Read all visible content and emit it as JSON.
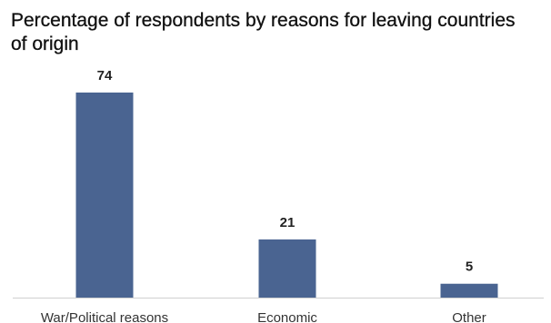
{
  "chart_data": {
    "type": "bar",
    "title": "Percentage of respondents by reasons for leaving countries of origin",
    "categories": [
      "War/Political reasons",
      "Economic",
      "Other"
    ],
    "values": [
      74,
      21,
      5
    ],
    "ylim": [
      0,
      80
    ],
    "grid": false,
    "legend": "none",
    "colors": {
      "bar": "#4a6491",
      "axis": "#d0d0d0"
    }
  }
}
